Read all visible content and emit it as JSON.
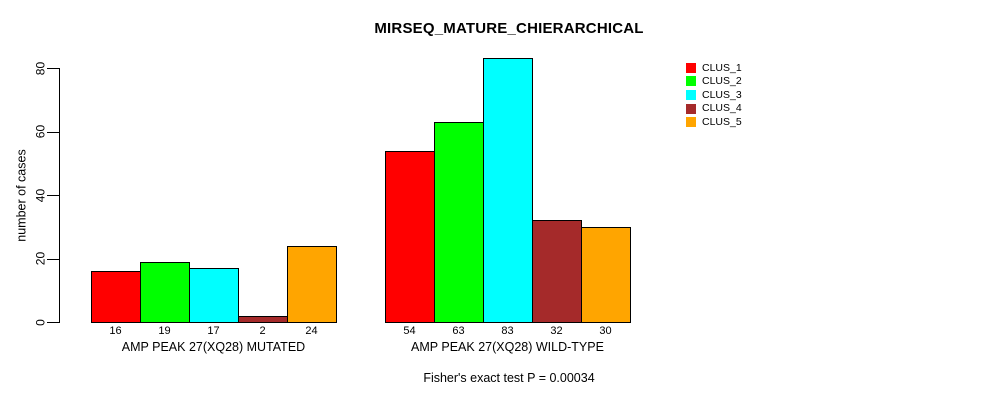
{
  "chart_data": {
    "type": "bar",
    "title": "MIRSEQ_MATURE_CHIERARCHICAL",
    "ylabel": "number of cases",
    "xlabel": "",
    "ylim": [
      0,
      85
    ],
    "yticks": [
      0,
      20,
      40,
      60,
      80
    ],
    "grid": false,
    "legend_position": "top-right",
    "categories": [
      "AMP PEAK 27(XQ28) MUTATED",
      "AMP PEAK 27(XQ28) WILD-TYPE"
    ],
    "series": [
      {
        "name": "CLUS_1",
        "color": "#FF0000",
        "values": [
          16,
          54
        ]
      },
      {
        "name": "CLUS_2",
        "color": "#00FF00",
        "values": [
          19,
          63
        ]
      },
      {
        "name": "CLUS_3",
        "color": "#00FFFF",
        "values": [
          17,
          83
        ]
      },
      {
        "name": "CLUS_4",
        "color": "#A52A2A",
        "values": [
          2,
          32
        ]
      },
      {
        "name": "CLUS_5",
        "color": "#FFA500",
        "values": [
          24,
          30
        ]
      }
    ],
    "show_value_labels": true,
    "footnote": "Fisher's exact test P = 0.00034",
    "axis_color": "#000000",
    "bar_border_color": "#000000"
  }
}
